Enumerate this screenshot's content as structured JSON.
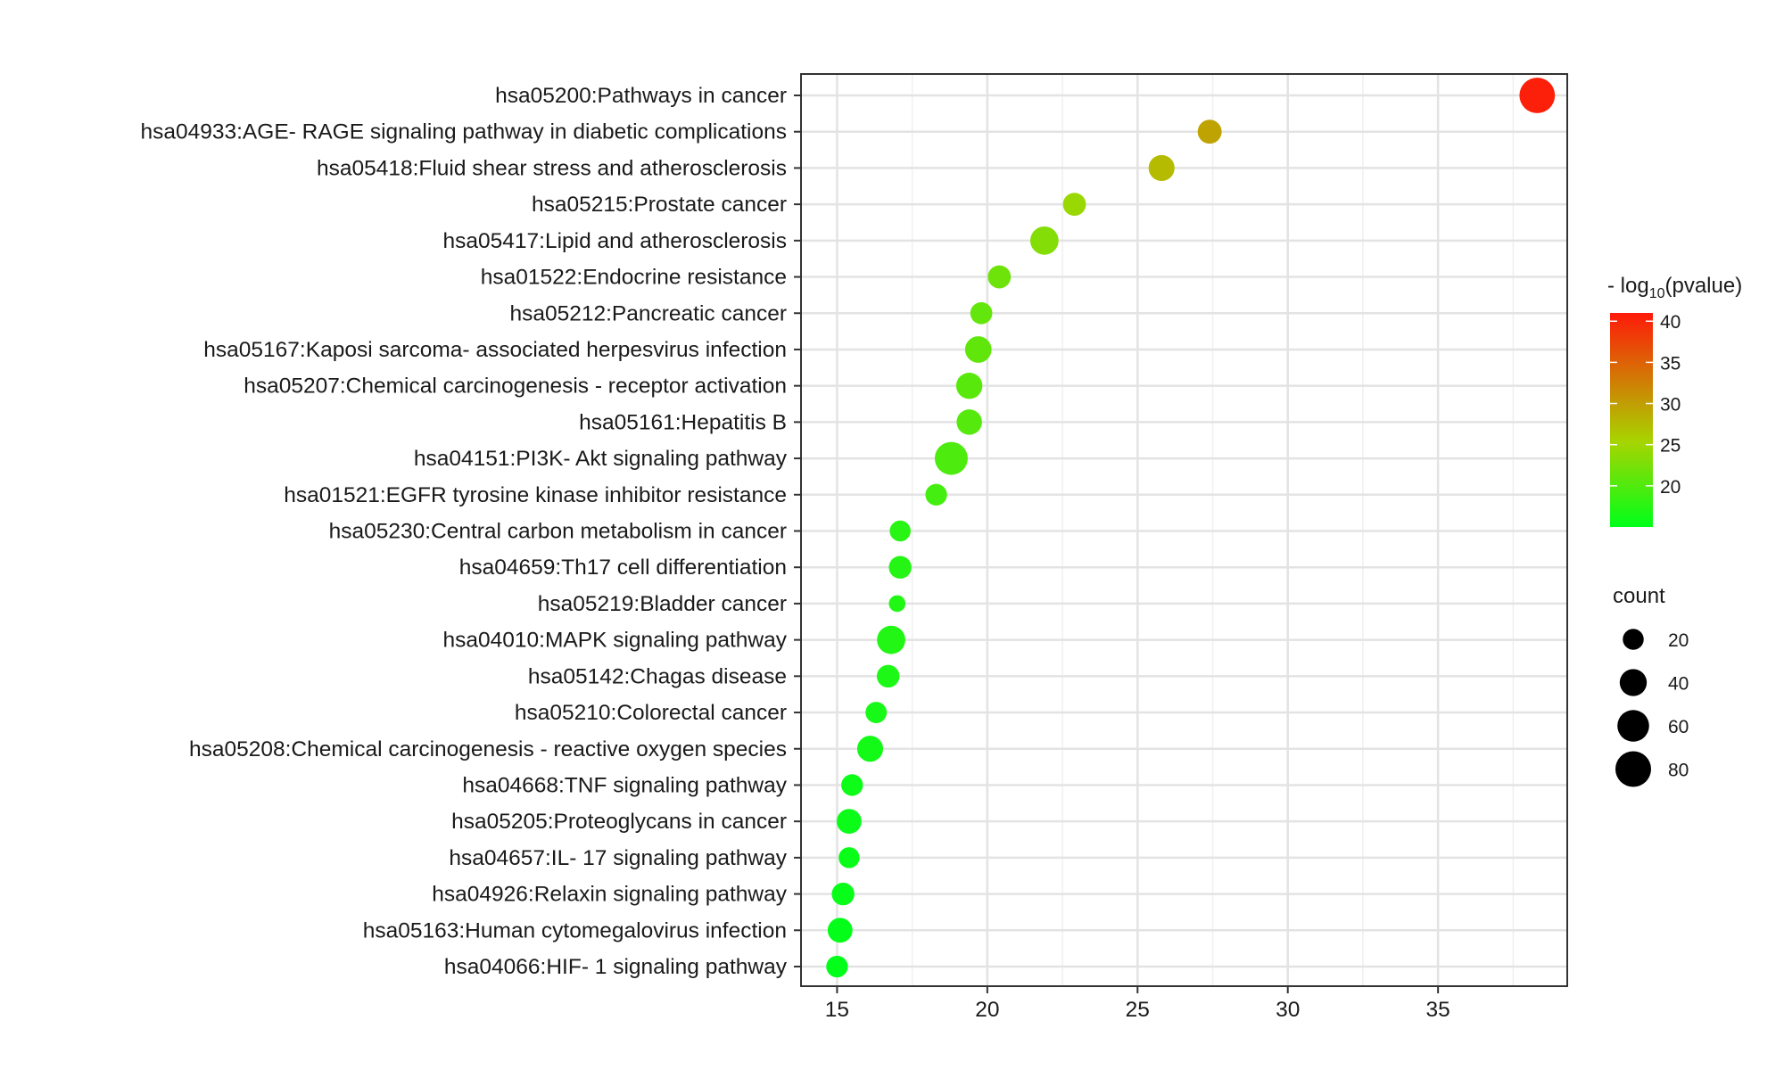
{
  "chart_data": {
    "type": "scatter",
    "title": "",
    "xlabel": "",
    "ylabel": "",
    "xlim": [
      13.8,
      39.3
    ],
    "x_ticks": [
      15,
      20,
      25,
      30,
      35
    ],
    "grid": true,
    "categories": [
      "hsa05200:Pathways in cancer",
      "hsa04933:AGE- RAGE signaling pathway in diabetic complications",
      "hsa05418:Fluid shear stress and atherosclerosis",
      "hsa05215:Prostate cancer",
      "hsa05417:Lipid and atherosclerosis",
      "hsa01522:Endocrine resistance",
      "hsa05212:Pancreatic cancer",
      "hsa05167:Kaposi sarcoma- associated herpesvirus infection",
      "hsa05207:Chemical carcinogenesis -  receptor activation",
      "hsa05161:Hepatitis B",
      "hsa04151:PI3K- Akt signaling pathway",
      "hsa01521:EGFR tyrosine kinase inhibitor resistance",
      "hsa05230:Central carbon metabolism in cancer",
      "hsa04659:Th17 cell differentiation",
      "hsa05219:Bladder cancer",
      "hsa04010:MAPK signaling pathway",
      "hsa05142:Chagas disease",
      "hsa05210:Colorectal cancer",
      "hsa05208:Chemical carcinogenesis -  reactive oxygen species",
      "hsa04668:TNF signaling pathway",
      "hsa05205:Proteoglycans in cancer",
      "hsa04657:IL- 17 signaling pathway",
      "hsa04926:Relaxin signaling pathway",
      "hsa05163:Human cytomegalovirus infection",
      "hsa04066:HIF- 1 signaling pathway"
    ],
    "x": [
      38.3,
      27.4,
      25.8,
      22.9,
      21.9,
      20.4,
      19.8,
      19.7,
      19.4,
      19.4,
      18.8,
      18.3,
      17.1,
      17.1,
      17.0,
      16.8,
      16.7,
      16.3,
      16.1,
      15.5,
      15.4,
      15.4,
      15.2,
      15.1,
      15.0
    ],
    "count": [
      79,
      29,
      36,
      26,
      45,
      26,
      23,
      38,
      37,
      34,
      66,
      22,
      20,
      25,
      10,
      45,
      25,
      21,
      36,
      22,
      32,
      20,
      25,
      32,
      22
    ],
    "neg_log10_pvalue": [
      40.5,
      29.5,
      27.5,
      24.5,
      23.2,
      21.8,
      21.1,
      21.0,
      20.5,
      20.3,
      19.8,
      19.2,
      17.5,
      17.3,
      17.0,
      17.1,
      16.8,
      16.4,
      16.2,
      15.8,
      15.7,
      15.6,
      15.5,
      15.3,
      15.2
    ],
    "color_legend": {
      "title_prefix": "- log",
      "title_subscript": "10",
      "title_suffix": "(pvalue)",
      "range": [
        15,
        41
      ],
      "ticks": [
        40,
        35,
        30,
        25,
        20
      ],
      "low_color": "#00ff1a",
      "mid_color": "#a8d400",
      "high_color": "#ff1a0a"
    },
    "size_legend": {
      "title": "count",
      "values": [
        20,
        40,
        60,
        80
      ]
    }
  }
}
